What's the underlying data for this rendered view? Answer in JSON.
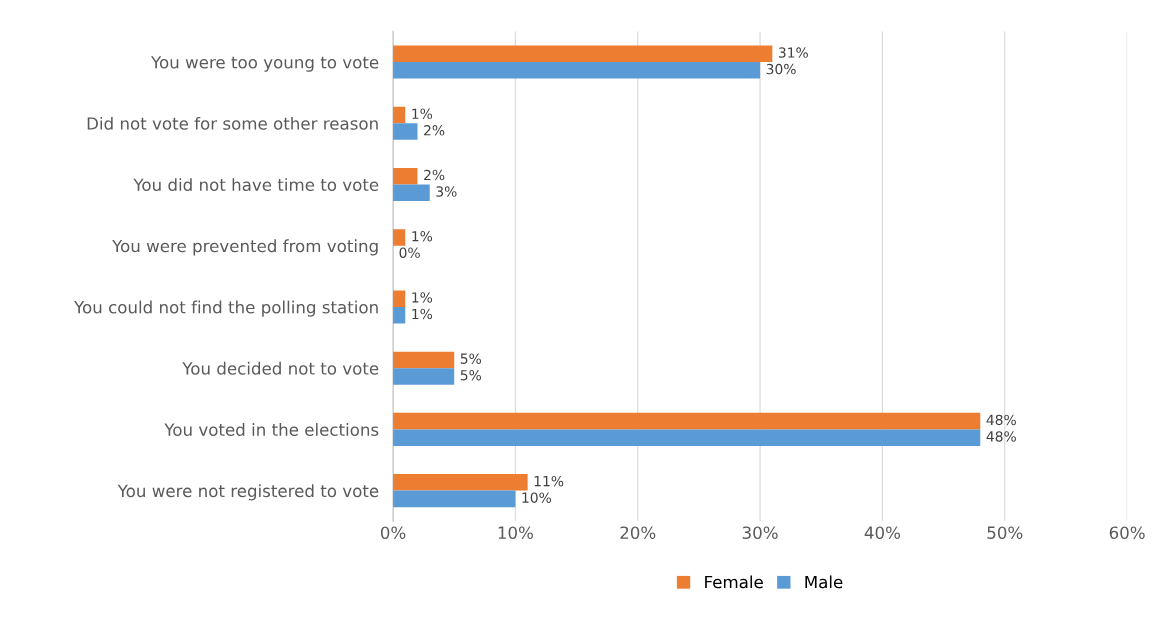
{
  "chart_data": {
    "type": "bar",
    "orientation": "horizontal",
    "categories": [
      "You were too young to vote",
      "Did not vote for some other reason",
      "You did not have time to vote",
      "You were prevented from voting",
      "You could not find the polling station",
      "You decided not to vote",
      "You voted in the elections",
      "You were not registered to vote"
    ],
    "series": [
      {
        "name": "Female",
        "color": "#ed7d31",
        "values": [
          31,
          1,
          2,
          1,
          1,
          5,
          48,
          11
        ],
        "value_labels": [
          "31%",
          "1%",
          "2%",
          "1%",
          "1%",
          "5%",
          "48%",
          "11%"
        ]
      },
      {
        "name": "Male",
        "color": "#5b9bd5",
        "values": [
          30,
          2,
          3,
          0,
          1,
          5,
          48,
          10
        ],
        "value_labels": [
          "30%",
          "2%",
          "3%",
          "0%",
          "1%",
          "5%",
          "48%",
          "10%"
        ]
      }
    ],
    "xlim": [
      0,
      60
    ],
    "xticks": [
      {
        "value": 0,
        "label": "0%"
      },
      {
        "value": 10,
        "label": "10%"
      },
      {
        "value": 20,
        "label": "20%"
      },
      {
        "value": 30,
        "label": "30%"
      },
      {
        "value": 40,
        "label": "40%"
      },
      {
        "value": 50,
        "label": "50%"
      },
      {
        "value": 60,
        "label": "60%"
      }
    ],
    "grid": "x",
    "legend": "bottom"
  }
}
